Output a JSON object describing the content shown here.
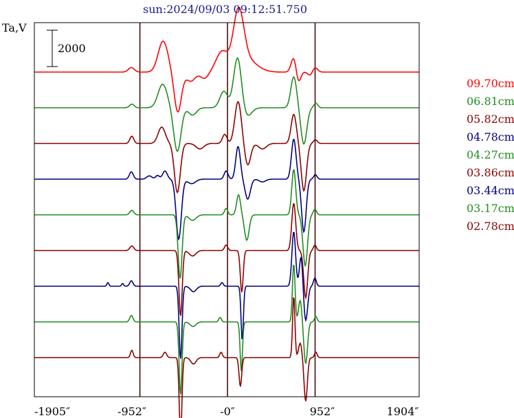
{
  "chart_data": {
    "type": "line",
    "title": "sun:2024/09/03 09:12:51.750",
    "ylabel": "Ta,V",
    "scale_bar_label": "2000",
    "xlim": [
      -1905,
      1904
    ],
    "x_ticks": [
      -1905,
      -952,
      0,
      952,
      1904
    ],
    "x_tick_labels": [
      "-1905″",
      "-952″",
      "-0″",
      "952″",
      "1904″"
    ],
    "vertical_gridlines_at": [
      -952,
      0,
      952
    ],
    "grid": false,
    "legend_position": "right",
    "scale_bar": 2000,
    "series": [
      {
        "name": "09.70cm",
        "color": "#ff0000",
        "events": [
          [
            -1045,
            250,
            45
          ],
          [
            -700,
            1700,
            75
          ],
          [
            -540,
            -2200,
            55
          ],
          [
            -400,
            -500,
            70
          ],
          [
            -250,
            -350,
            60
          ],
          [
            -60,
            1100,
            90
          ],
          [
            120,
            3000,
            80
          ],
          [
            200,
            700,
            160
          ],
          [
            720,
            800,
            40
          ],
          [
            770,
            -600,
            35
          ],
          [
            900,
            -200,
            35
          ],
          [
            950,
            250,
            40
          ]
        ]
      },
      {
        "name": "06.81cm",
        "color": "#228b22",
        "events": [
          [
            -1040,
            200,
            35
          ],
          [
            -705,
            1300,
            70
          ],
          [
            -545,
            -2400,
            55
          ],
          [
            -380,
            -400,
            60
          ],
          [
            -40,
            900,
            60
          ],
          [
            110,
            2800,
            60
          ],
          [
            210,
            -500,
            70
          ],
          [
            720,
            1700,
            45
          ],
          [
            830,
            -2000,
            45
          ],
          [
            960,
            250,
            30
          ]
        ]
      },
      {
        "name": "05.82cm",
        "color": "#8b0000",
        "events": [
          [
            -1040,
            400,
            30
          ],
          [
            -715,
            900,
            55
          ],
          [
            -545,
            -2700,
            45
          ],
          [
            -300,
            -300,
            60
          ],
          [
            -30,
            500,
            35
          ],
          [
            115,
            2300,
            50
          ],
          [
            220,
            -1200,
            45
          ],
          [
            380,
            -300,
            60
          ],
          [
            720,
            1600,
            40
          ],
          [
            830,
            -2600,
            40
          ],
          [
            955,
            200,
            30
          ]
        ]
      },
      {
        "name": "04.78cm",
        "color": "#00007f",
        "events": [
          [
            -1045,
            400,
            30
          ],
          [
            -850,
            180,
            40
          ],
          [
            -760,
            200,
            30
          ],
          [
            -680,
            450,
            35
          ],
          [
            -530,
            -3300,
            40
          ],
          [
            -390,
            -250,
            60
          ],
          [
            -15,
            450,
            30
          ],
          [
            115,
            1800,
            35
          ],
          [
            220,
            -1100,
            40
          ],
          [
            380,
            -150,
            50
          ],
          [
            720,
            2200,
            35
          ],
          [
            830,
            -2900,
            35
          ],
          [
            955,
            250,
            25
          ]
        ]
      },
      {
        "name": "04.27cm",
        "color": "#228b22",
        "events": [
          [
            -1040,
            250,
            30
          ],
          [
            -515,
            -3500,
            30
          ],
          [
            -380,
            -300,
            55
          ],
          [
            -15,
            350,
            25
          ],
          [
            120,
            1100,
            30
          ],
          [
            210,
            -1400,
            35
          ],
          [
            720,
            2500,
            30
          ],
          [
            845,
            -2800,
            35
          ],
          [
            950,
            300,
            25
          ]
        ]
      },
      {
        "name": "03.86cm",
        "color": "#8b0000",
        "events": [
          [
            -1040,
            250,
            30
          ],
          [
            -510,
            -3600,
            25
          ],
          [
            -380,
            -300,
            50
          ],
          [
            -15,
            300,
            25
          ],
          [
            155,
            -2300,
            22
          ],
          [
            720,
            2600,
            30
          ],
          [
            850,
            -2600,
            30
          ],
          [
            950,
            300,
            22
          ]
        ]
      },
      {
        "name": "03.44cm",
        "color": "#00007f",
        "events": [
          [
            -1300,
            200,
            15
          ],
          [
            -1140,
            150,
            15
          ],
          [
            -1045,
            300,
            25
          ],
          [
            -510,
            -4000,
            22
          ],
          [
            -370,
            -300,
            45
          ],
          [
            -60,
            200,
            20
          ],
          [
            160,
            -3000,
            18
          ],
          [
            720,
            3000,
            28
          ],
          [
            800,
            1700,
            25
          ],
          [
            850,
            -1900,
            30
          ],
          [
            950,
            450,
            22
          ]
        ]
      },
      {
        "name": "03.17cm",
        "color": "#228b22",
        "events": [
          [
            -1045,
            350,
            25
          ],
          [
            -510,
            -4000,
            22
          ],
          [
            -375,
            -250,
            45
          ],
          [
            -80,
            250,
            20
          ],
          [
            150,
            -2700,
            18
          ],
          [
            720,
            3200,
            20
          ],
          [
            790,
            1200,
            25
          ],
          [
            850,
            -2300,
            28
          ],
          [
            960,
            300,
            20
          ]
        ]
      },
      {
        "name": "02.78cm",
        "color": "#8b0000",
        "events": [
          [
            -1040,
            400,
            20
          ],
          [
            -680,
            300,
            25
          ],
          [
            -510,
            -4400,
            20
          ],
          [
            -370,
            -350,
            40
          ],
          [
            -70,
            300,
            20
          ],
          [
            140,
            -1600,
            20
          ],
          [
            720,
            3400,
            18
          ],
          [
            790,
            800,
            25
          ],
          [
            850,
            -2400,
            25
          ],
          [
            960,
            300,
            20
          ]
        ]
      }
    ]
  }
}
